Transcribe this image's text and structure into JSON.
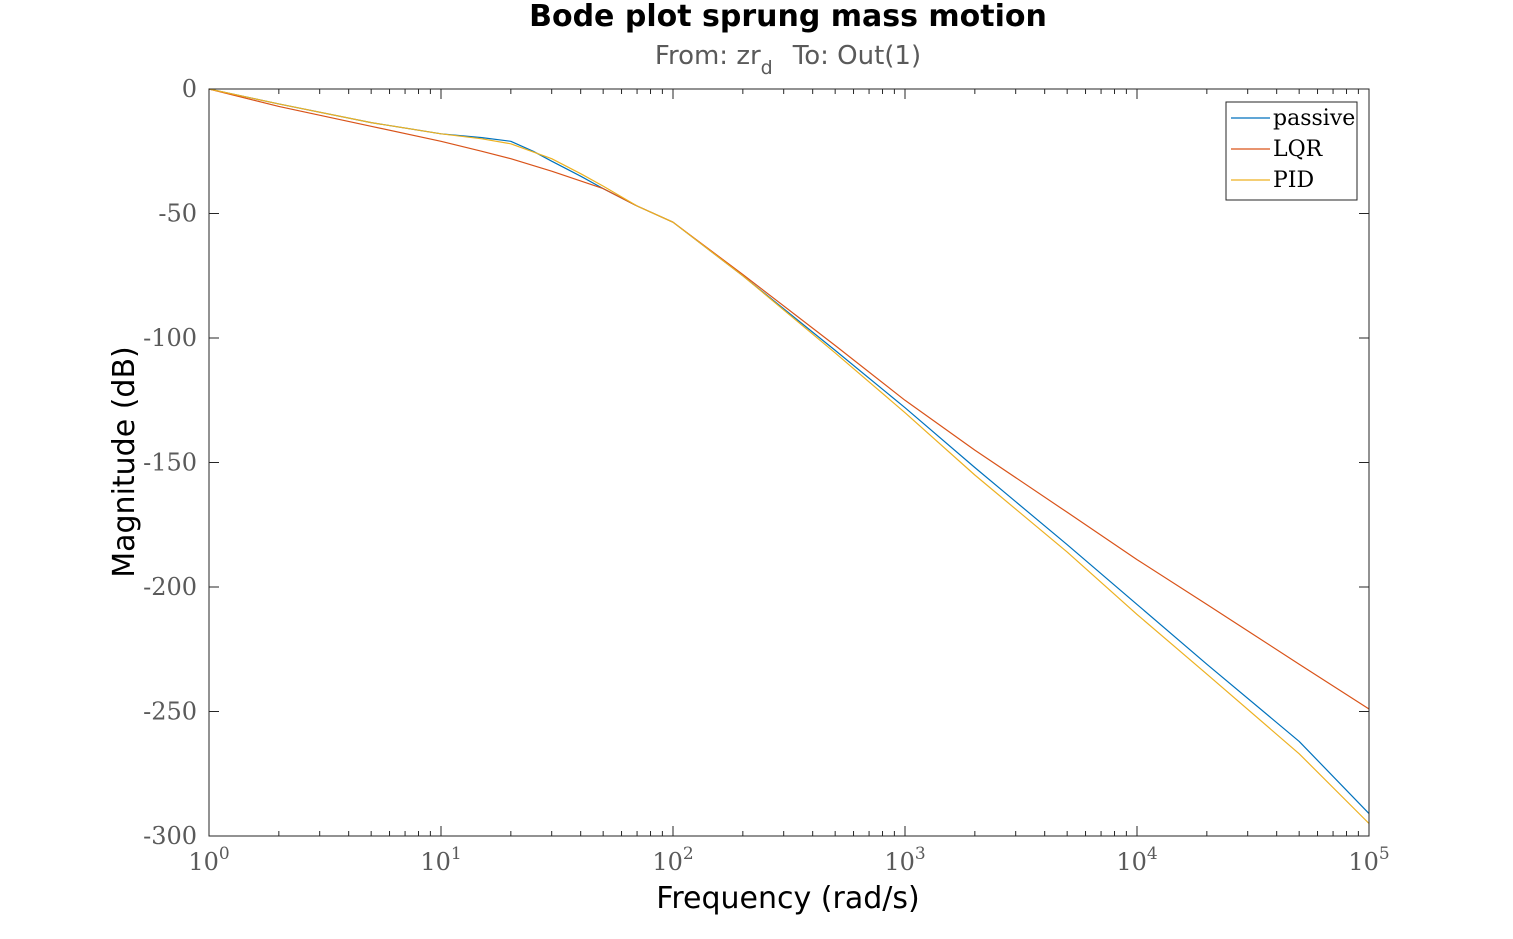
{
  "chart_data": {
    "type": "line",
    "title": "Bode plot sprung mass motion",
    "subtitle": {
      "from_label": "From: zr",
      "from_subscript": "d",
      "to_label": "To: Out(1)"
    },
    "xlabel": "Frequency  (rad/s)",
    "ylabel": "Magnitude (dB)",
    "xscale": "log",
    "xlim": [
      1,
      100000
    ],
    "ylim": [
      -300,
      0
    ],
    "x_ticks": [
      {
        "base": "10",
        "exp": "0",
        "value": 1
      },
      {
        "base": "10",
        "exp": "1",
        "value": 10
      },
      {
        "base": "10",
        "exp": "2",
        "value": 100
      },
      {
        "base": "10",
        "exp": "3",
        "value": 1000
      },
      {
        "base": "10",
        "exp": "4",
        "value": 10000
      },
      {
        "base": "10",
        "exp": "5",
        "value": 100000
      }
    ],
    "y_ticks": [
      {
        "label": "0",
        "value": 0
      },
      {
        "label": "-50",
        "value": -50
      },
      {
        "label": "-100",
        "value": -100
      },
      {
        "label": "-150",
        "value": -150
      },
      {
        "label": "-200",
        "value": -200
      },
      {
        "label": "-250",
        "value": -250
      },
      {
        "label": "-300",
        "value": -300
      }
    ],
    "grid": false,
    "legend_position": "top-right",
    "series": [
      {
        "name": "passive",
        "color": "#0072BD",
        "x": [
          1,
          2,
          5,
          10,
          15,
          20,
          25,
          30,
          40,
          50,
          70,
          100,
          200,
          500,
          1000,
          2000,
          5000,
          10000,
          20000,
          50000,
          100000
        ],
        "y": [
          0,
          -6,
          -13.5,
          -18,
          -19.5,
          -21,
          -25,
          -29,
          -35,
          -40,
          -47,
          -53.5,
          -75,
          -105,
          -128,
          -152,
          -183,
          -207,
          -231,
          -262,
          -291
        ]
      },
      {
        "name": "LQR",
        "color": "#D95319",
        "x": [
          1,
          2,
          5,
          10,
          15,
          20,
          30,
          50,
          70,
          100,
          200,
          500,
          1000,
          2000,
          5000,
          10000,
          20000,
          50000,
          100000
        ],
        "y": [
          0,
          -7,
          -15,
          -21,
          -25,
          -28,
          -33,
          -40,
          -47,
          -53.5,
          -74.5,
          -103,
          -125,
          -145,
          -170,
          -189,
          -207,
          -231,
          -249
        ]
      },
      {
        "name": "PID",
        "color": "#EDB120",
        "x": [
          1,
          2,
          5,
          10,
          15,
          20,
          30,
          40,
          50,
          70,
          100,
          200,
          500,
          1000,
          2000,
          5000,
          10000,
          20000,
          50000,
          100000
        ],
        "y": [
          0,
          -6,
          -13.5,
          -18,
          -20,
          -22,
          -28,
          -34,
          -39,
          -47,
          -53.5,
          -75,
          -106,
          -130,
          -155,
          -186,
          -211,
          -235,
          -267,
          -295
        ]
      }
    ]
  }
}
